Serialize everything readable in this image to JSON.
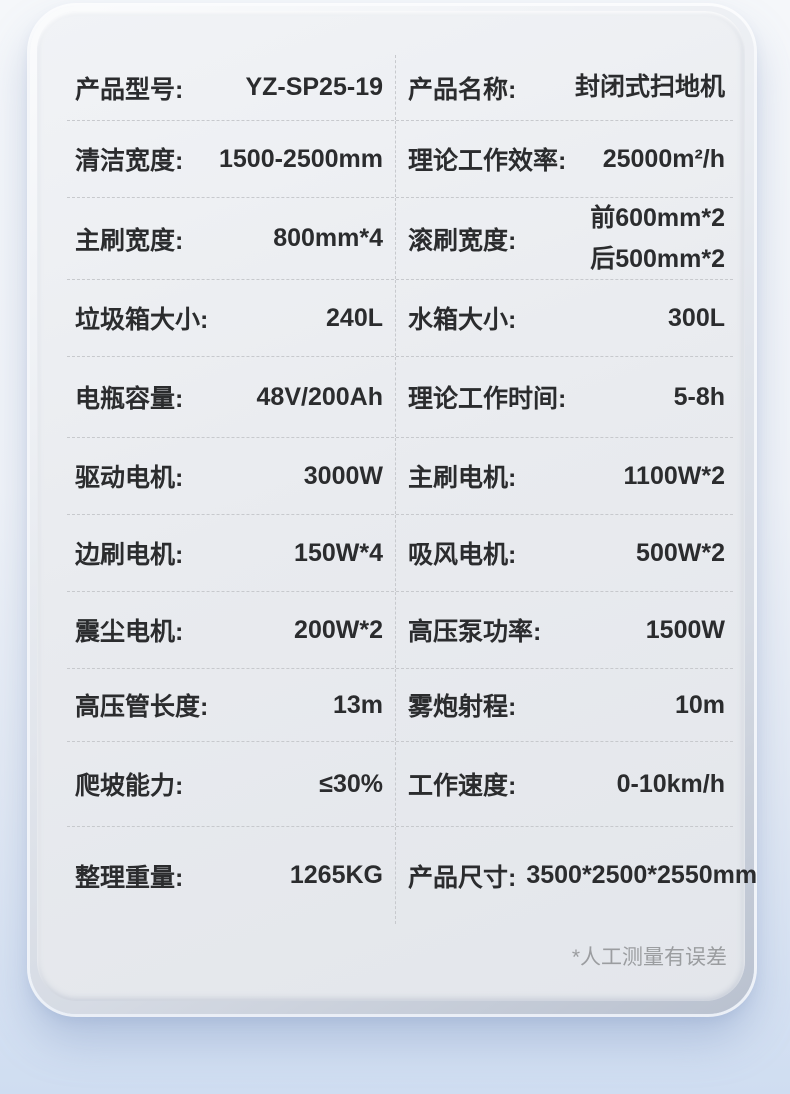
{
  "product_sheet": {
    "title_note": "product specification table",
    "footnote": "*人工测量有误差"
  },
  "table": {
    "rows": [
      {
        "left": {
          "label": "产品型号:",
          "value": "YZ-SP25-19"
        },
        "right": {
          "label": "产品名称:",
          "value": "封闭式扫地机"
        }
      },
      {
        "left": {
          "label": "清洁宽度:",
          "value": "1500-2500mm"
        },
        "right": {
          "label": "理论工作效率:",
          "value": "25000m²/h"
        }
      },
      {
        "left": {
          "label": "主刷宽度:",
          "value": "800mm*4"
        },
        "right": {
          "label": "滚刷宽度:",
          "value": "前600mm*2\n后500mm*2"
        }
      },
      {
        "left": {
          "label": "垃圾箱大小:",
          "value": "240L"
        },
        "right": {
          "label": "水箱大小:",
          "value": "300L"
        }
      },
      {
        "left": {
          "label": "电瓶容量:",
          "value": "48V/200Ah"
        },
        "right": {
          "label": "理论工作时间:",
          "value": "5-8h"
        }
      },
      {
        "left": {
          "label": "驱动电机:",
          "value": "3000W"
        },
        "right": {
          "label": "主刷电机:",
          "value": "1100W*2"
        }
      },
      {
        "left": {
          "label": "边刷电机:",
          "value": "150W*4"
        },
        "right": {
          "label": "吸风电机:",
          "value": "500W*2"
        }
      },
      {
        "left": {
          "label": "震尘电机:",
          "value": "200W*2"
        },
        "right": {
          "label": "高压泵功率:",
          "value": "1500W"
        }
      },
      {
        "left": {
          "label": "高压管长度:",
          "value": "13m"
        },
        "right": {
          "label": "雾炮射程:",
          "value": "10m"
        }
      },
      {
        "left": {
          "label": "爬坡能力:",
          "value": "≤30%"
        },
        "right": {
          "label": "工作速度:",
          "value": "0-10km/h"
        }
      },
      {
        "left": {
          "label": "整理重量:",
          "value": "1265KG"
        },
        "right": {
          "label": "产品尺寸:",
          "value": "3500*2500*2550mm"
        }
      }
    ]
  },
  "palette": {
    "text": "#2b2c2e",
    "footnote_text": "#9b9da0",
    "dashed_divider": "#c7c9cd",
    "card_face": "#e9ebef",
    "background_top": "#f5f7fa",
    "background_bottom": "#cfddf1"
  }
}
